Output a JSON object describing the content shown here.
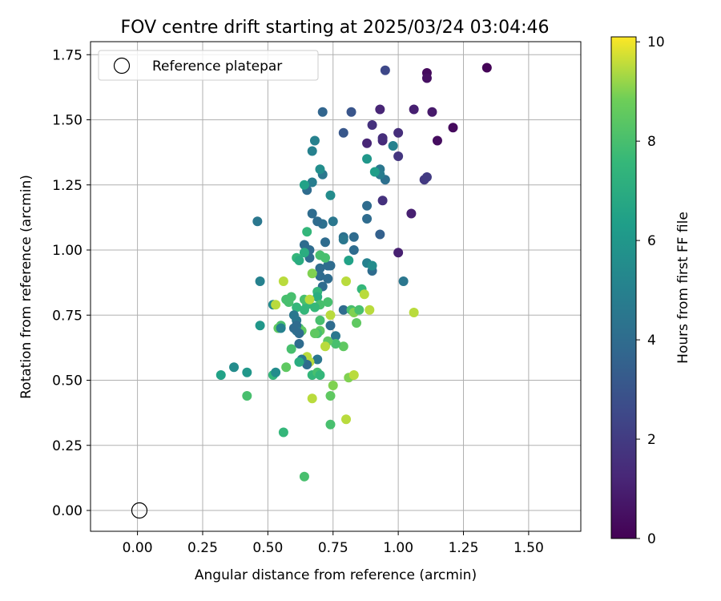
{
  "chart_data": {
    "type": "scatter",
    "title": "FOV centre drift starting at 2025/03/24 03:04:46",
    "xlabel": "Angular distance from reference (arcmin)",
    "ylabel": "Rotation from reference (arcmin)",
    "xlim": [
      -0.18,
      1.7
    ],
    "ylim": [
      -0.08,
      1.8
    ],
    "x_ticks": [
      "0.00",
      "0.25",
      "0.50",
      "0.75",
      "1.00",
      "1.25",
      "1.50"
    ],
    "y_ticks": [
      "0.00",
      "0.25",
      "0.50",
      "0.75",
      "1.00",
      "1.25",
      "1.50",
      "1.75"
    ],
    "grid": true,
    "legend": {
      "placement": "top-left",
      "entries": [
        "Reference platepar"
      ]
    },
    "reference_point": {
      "x": 0.0,
      "y": 0.0,
      "label": "Reference platepar"
    },
    "colorbar": {
      "label": "Hours from first FF file",
      "range": [
        0,
        10.1
      ],
      "ticks": [
        "0",
        "2",
        "4",
        "6",
        "8",
        "10"
      ],
      "colormap": "viridis"
    },
    "points": [
      [
        1.34,
        1.7,
        0.1
      ],
      [
        1.11,
        1.68,
        0.3
      ],
      [
        1.11,
        1.66,
        0.5
      ],
      [
        1.21,
        1.47,
        0.3
      ],
      [
        1.15,
        1.42,
        0.4
      ],
      [
        1.13,
        1.53,
        0.8
      ],
      [
        1.06,
        1.54,
        1.0
      ],
      [
        1.05,
        1.14,
        1.0
      ],
      [
        0.95,
        1.69,
        2.5
      ],
      [
        0.93,
        1.54,
        1.2
      ],
      [
        0.94,
        1.42,
        1.3
      ],
      [
        0.94,
        1.43,
        1.5
      ],
      [
        0.88,
        1.41,
        1.2
      ],
      [
        0.9,
        1.48,
        1.6
      ],
      [
        1.0,
        1.45,
        1.5
      ],
      [
        1.0,
        1.36,
        1.8
      ],
      [
        1.1,
        1.27,
        1.9
      ],
      [
        1.11,
        1.28,
        2.0
      ],
      [
        0.94,
        1.19,
        1.6
      ],
      [
        1.0,
        0.99,
        1.0
      ],
      [
        0.82,
        1.53,
        3.0
      ],
      [
        0.79,
        1.45,
        3.1
      ],
      [
        0.71,
        1.53,
        3.7
      ],
      [
        0.93,
        1.06,
        3.5
      ],
      [
        0.95,
        1.27,
        4.2
      ],
      [
        0.93,
        1.31,
        4.5
      ],
      [
        0.92,
        1.3,
        4.6
      ],
      [
        0.93,
        1.29,
        4.8
      ],
      [
        0.98,
        1.4,
        5.0
      ],
      [
        0.88,
        1.35,
        6.0
      ],
      [
        0.91,
        1.3,
        6.3
      ],
      [
        0.88,
        1.17,
        4.0
      ],
      [
        0.88,
        1.12,
        4.0
      ],
      [
        1.02,
        0.88,
        4.5
      ],
      [
        0.9,
        0.92,
        4.0
      ],
      [
        0.88,
        0.95,
        5.0
      ],
      [
        0.9,
        0.94,
        5.5
      ],
      [
        0.86,
        0.85,
        7.5
      ],
      [
        0.83,
        1.05,
        4.0
      ],
      [
        0.83,
        1.0,
        4.0
      ],
      [
        0.79,
        1.05,
        4.2
      ],
      [
        0.79,
        1.04,
        4.5
      ],
      [
        0.75,
        1.11,
        4.5
      ],
      [
        0.74,
        1.21,
        5.5
      ],
      [
        0.71,
        1.1,
        4.2
      ],
      [
        0.69,
        1.11,
        4.0
      ],
      [
        0.71,
        1.29,
        4.5
      ],
      [
        0.7,
        1.31,
        5.6
      ],
      [
        0.67,
        1.26,
        4.8
      ],
      [
        0.65,
        1.23,
        4.0
      ],
      [
        0.64,
        1.25,
        6.5
      ],
      [
        0.67,
        1.14,
        4.0
      ],
      [
        0.68,
        1.42,
        5.0
      ],
      [
        0.67,
        1.38,
        5.0
      ],
      [
        0.46,
        1.11,
        4.5
      ],
      [
        0.47,
        0.88,
        5.0
      ],
      [
        0.64,
        1.02,
        4.0
      ],
      [
        0.66,
        0.97,
        4.0
      ],
      [
        0.66,
        1.0,
        4.0
      ],
      [
        0.65,
        1.07,
        7.5
      ],
      [
        0.61,
        0.97,
        7.5
      ],
      [
        0.62,
        0.96,
        7.0
      ],
      [
        0.64,
        0.99,
        7.0
      ],
      [
        0.72,
        1.03,
        4.0
      ],
      [
        0.7,
        0.93,
        4.0
      ],
      [
        0.73,
        0.94,
        4.0
      ],
      [
        0.74,
        0.94,
        4.0
      ],
      [
        0.73,
        0.89,
        4.0
      ],
      [
        0.71,
        0.86,
        4.0
      ],
      [
        0.7,
        0.98,
        8.0
      ],
      [
        0.72,
        0.97,
        8.0
      ],
      [
        0.7,
        0.9,
        4.0
      ],
      [
        0.69,
        0.84,
        7.5
      ],
      [
        0.69,
        0.82,
        7.0
      ],
      [
        0.7,
        0.79,
        8.0
      ],
      [
        0.68,
        0.78,
        7.6
      ],
      [
        0.67,
        0.91,
        9.0
      ],
      [
        0.73,
        0.8,
        8.0
      ],
      [
        0.74,
        0.75,
        9.5
      ],
      [
        0.74,
        0.71,
        4.0
      ],
      [
        0.76,
        0.67,
        4.5
      ],
      [
        0.79,
        0.77,
        4.0
      ],
      [
        0.82,
        0.77,
        8.0
      ],
      [
        0.83,
        0.76,
        9.0
      ],
      [
        0.85,
        0.77,
        8.0
      ],
      [
        0.87,
        0.83,
        9.5
      ],
      [
        0.89,
        0.77,
        9.5
      ],
      [
        0.81,
        0.96,
        6.5
      ],
      [
        0.8,
        0.88,
        9.5
      ],
      [
        0.84,
        0.72,
        8.5
      ],
      [
        0.79,
        0.63,
        8.5
      ],
      [
        0.76,
        0.64,
        8.0
      ],
      [
        0.73,
        0.65,
        8.5
      ],
      [
        0.72,
        0.63,
        9.5
      ],
      [
        0.7,
        0.73,
        8.0
      ],
      [
        0.7,
        0.69,
        8.5
      ],
      [
        0.69,
        0.68,
        8.0
      ],
      [
        0.68,
        0.68,
        8.5
      ],
      [
        0.69,
        0.58,
        4.5
      ],
      [
        0.67,
        0.52,
        7.5
      ],
      [
        0.69,
        0.53,
        8.0
      ],
      [
        0.7,
        0.52,
        7.5
      ],
      [
        0.66,
        0.57,
        9.5
      ],
      [
        0.65,
        0.59,
        9.5
      ],
      [
        0.65,
        0.56,
        4.0
      ],
      [
        0.63,
        0.58,
        4.5
      ],
      [
        0.62,
        0.64,
        4.0
      ],
      [
        0.62,
        0.57,
        7.0
      ],
      [
        0.62,
        0.7,
        8.0
      ],
      [
        0.63,
        0.69,
        8.5
      ],
      [
        0.64,
        0.77,
        7.5
      ],
      [
        0.65,
        0.79,
        7.5
      ],
      [
        0.64,
        0.81,
        8.0
      ],
      [
        0.66,
        0.81,
        9.5
      ],
      [
        0.61,
        0.78,
        7.5
      ],
      [
        0.59,
        0.82,
        8.0
      ],
      [
        0.58,
        0.8,
        8.0
      ],
      [
        0.6,
        0.75,
        4.5
      ],
      [
        0.61,
        0.73,
        4.5
      ],
      [
        0.61,
        0.71,
        4.0
      ],
      [
        0.61,
        0.69,
        4.5
      ],
      [
        0.62,
        0.68,
        4.0
      ],
      [
        0.6,
        0.7,
        4.0
      ],
      [
        0.56,
        0.88,
        9.5
      ],
      [
        0.57,
        0.81,
        8.0
      ],
      [
        0.55,
        0.71,
        8.0
      ],
      [
        0.54,
        0.7,
        8.5
      ],
      [
        0.55,
        0.7,
        5.0
      ],
      [
        0.52,
        0.79,
        5.5
      ],
      [
        0.53,
        0.79,
        9.5
      ],
      [
        0.47,
        0.71,
        6.0
      ],
      [
        0.52,
        0.52,
        7.5
      ],
      [
        0.53,
        0.53,
        5.5
      ],
      [
        0.57,
        0.55,
        8.5
      ],
      [
        0.59,
        0.62,
        8.0
      ],
      [
        0.42,
        0.53,
        6.0
      ],
      [
        0.37,
        0.55,
        5.5
      ],
      [
        0.32,
        0.52,
        6.5
      ],
      [
        0.42,
        0.44,
        8.0
      ],
      [
        0.56,
        0.3,
        7.5
      ],
      [
        0.64,
        0.13,
        8.0
      ],
      [
        0.67,
        0.43,
        9.5
      ],
      [
        0.75,
        0.48,
        9.0
      ],
      [
        0.74,
        0.44,
        8.5
      ],
      [
        0.81,
        0.51,
        9.0
      ],
      [
        0.83,
        0.52,
        9.5
      ],
      [
        0.8,
        0.35,
        9.5
      ],
      [
        0.74,
        0.33,
        8.0
      ],
      [
        1.06,
        0.76,
        9.5
      ]
    ]
  }
}
